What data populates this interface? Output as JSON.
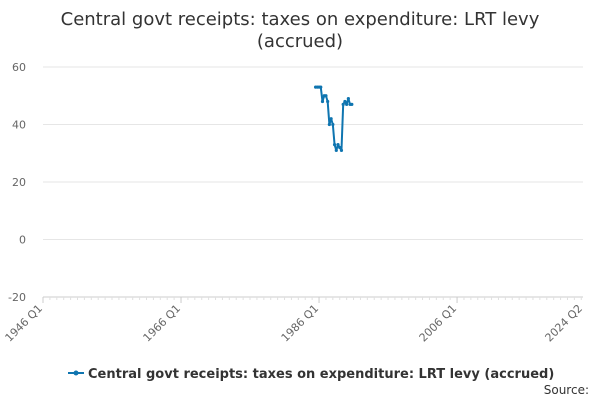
{
  "chart_data": {
    "type": "line",
    "title_lines": [
      "Central govt receipts: taxes on expenditure: LRT levy",
      "(accrued)"
    ],
    "xlabel": "",
    "ylabel": "",
    "ylim": [
      -20,
      60
    ],
    "y_ticks": [
      -20,
      0,
      20,
      40,
      60
    ],
    "x_range": [
      "1946 Q1",
      "2024 Q2"
    ],
    "x_ticks": [
      "1946 Q1",
      "1966 Q1",
      "1986 Q1",
      "2006 Q1",
      "2024 Q2"
    ],
    "grid": true,
    "legend_position": "bottom",
    "color": "#0f75b0",
    "series": [
      {
        "name": "Central govt receipts: taxes on expenditure: LRT levy (accrued)",
        "x": [
          "1985 Q3",
          "1985 Q4",
          "1986 Q1",
          "1986 Q2",
          "1986 Q3",
          "1986 Q4",
          "1987 Q1",
          "1987 Q2",
          "1987 Q3",
          "1987 Q4",
          "1988 Q1",
          "1988 Q2",
          "1988 Q3",
          "1988 Q4",
          "1989 Q1",
          "1989 Q2",
          "1989 Q3",
          "1989 Q4",
          "1990 Q1",
          "1990 Q2",
          "1990 Q3",
          "1990 Q4"
        ],
        "y": [
          53,
          53,
          53,
          53,
          48,
          50,
          50,
          48,
          40,
          42,
          40,
          33,
          31,
          33,
          32,
          31,
          47,
          48,
          47,
          49,
          47,
          47
        ]
      }
    ]
  },
  "source_label": "Source:"
}
